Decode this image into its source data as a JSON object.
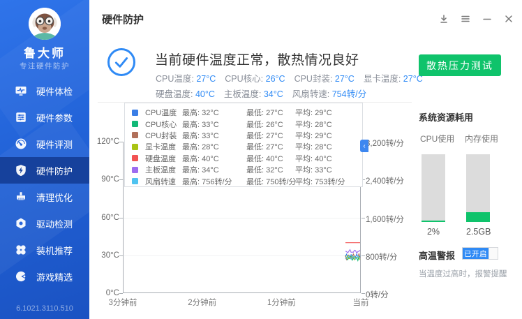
{
  "window": {
    "title": "硬件防护",
    "controls": [
      {
        "icon": "download-icon"
      },
      {
        "icon": "menu-icon"
      },
      {
        "icon": "minimize-icon"
      },
      {
        "icon": "close-icon"
      }
    ]
  },
  "sidebar": {
    "brand": {
      "name": "鲁大师",
      "tagline": "专注硬件防护",
      "avatar": "monkey-mascot-icon"
    },
    "items": [
      {
        "label": "硬件体检",
        "icon": "monitor-pulse",
        "active": false
      },
      {
        "label": "硬件参数",
        "icon": "sliders",
        "active": false
      },
      {
        "label": "硬件评测",
        "icon": "gauge",
        "active": false
      },
      {
        "label": "硬件防护",
        "icon": "shield-bolt",
        "active": true
      },
      {
        "label": "清理优化",
        "icon": "brush",
        "active": false
      },
      {
        "label": "驱动检测",
        "icon": "nut",
        "active": false
      },
      {
        "label": "装机推荐",
        "icon": "clover",
        "active": false
      },
      {
        "label": "游戏精选",
        "icon": "pacman",
        "active": false
      }
    ],
    "version": "6.1021.3110.510"
  },
  "status": {
    "title": "当前硬件温度正常，散热情况良好",
    "metrics_line1": [
      {
        "label": "CPU温度",
        "value": "27°C"
      },
      {
        "label": "CPU核心",
        "value": "26°C"
      },
      {
        "label": "CPU封装",
        "value": "27°C"
      },
      {
        "label": "显卡温度",
        "value": "27°C"
      }
    ],
    "metrics_line2": [
      {
        "label": "硬盘温度",
        "value": "40°C"
      },
      {
        "label": "主板温度",
        "value": "34°C"
      },
      {
        "label": "风扇转速",
        "value": "754转/分"
      }
    ]
  },
  "actions": {
    "stress_test_label": "散热压力测试"
  },
  "chart_data": {
    "type": "line",
    "x_labels": [
      "3分钟前",
      "2分钟前",
      "1分钟前",
      "当前"
    ],
    "left_axis": {
      "unit": "°C",
      "min": 0,
      "max": 120,
      "ticks": [
        "120°C",
        "90°C",
        "60°C",
        "30°C",
        "0°C"
      ]
    },
    "right_axis": {
      "unit": "转/分",
      "min": 0,
      "max": 3200,
      "ticks": [
        "3,200转/分",
        "2,400转/分",
        "1,600转/分",
        "800转/分",
        "0转/分"
      ]
    },
    "stat_labels": {
      "max": "最高",
      "min": "最低",
      "avg": "平均"
    },
    "legend_position": "top-left-overlay",
    "grid": true,
    "data_window": "recent points near 当前 only",
    "series": [
      {
        "name": "CPU温度",
        "color": "#3a7ee6",
        "axis": "left",
        "max": 32,
        "min": 27,
        "avg": 29,
        "unit": "°C"
      },
      {
        "name": "CPU核心",
        "color": "#12b877",
        "axis": "left",
        "max": 33,
        "min": 26,
        "avg": 28,
        "unit": "°C"
      },
      {
        "name": "CPU封装",
        "color": "#b1705a",
        "axis": "left",
        "max": 33,
        "min": 27,
        "avg": 29,
        "unit": "°C"
      },
      {
        "name": "显卡温度",
        "color": "#a9c414",
        "axis": "left",
        "max": 28,
        "min": 27,
        "avg": 28,
        "unit": "°C"
      },
      {
        "name": "硬盘温度",
        "color": "#f25353",
        "axis": "left",
        "max": 40,
        "min": 40,
        "avg": 40,
        "unit": "°C"
      },
      {
        "name": "主板温度",
        "color": "#9d6cf0",
        "axis": "left",
        "max": 34,
        "min": 32,
        "avg": 33,
        "unit": "°C"
      },
      {
        "name": "风扇转速",
        "color": "#4fc3f0",
        "axis": "right",
        "max": 756,
        "min": 750,
        "avg": 753,
        "unit": "转/分"
      }
    ],
    "collapse_button": "chevron-left-icon"
  },
  "resources": {
    "heading": "系统资源耗用",
    "cpu": {
      "label": "CPU使用",
      "value": "2%",
      "percent": 2
    },
    "memory": {
      "label": "内存使用",
      "value": "2.5GB",
      "percent": 14
    }
  },
  "alarm": {
    "heading": "高温警报",
    "toggle_label": "已开启",
    "enabled": true,
    "description": "当温度过高时，报警提醒"
  },
  "colors": {
    "accent_blue": "#2f8af5",
    "action_green": "#0fc36b",
    "sidebar_blue": "#2263d8",
    "sidebar_active": "#16419c"
  }
}
